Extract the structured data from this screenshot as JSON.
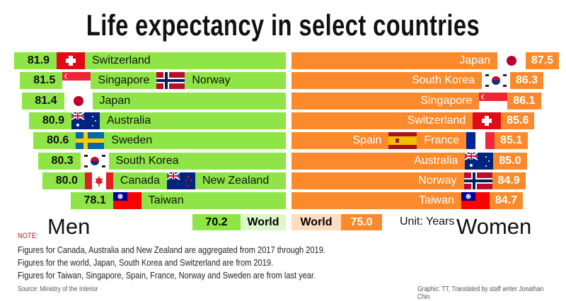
{
  "title": "Life expectancy in select countries",
  "chart_data": {
    "type": "bar",
    "title": "Life expectancy in select countries",
    "unit": "Unit: Years",
    "men": {
      "label": "Men",
      "color": "#8fe547",
      "rows": [
        {
          "value": "81.9",
          "countries": [
            "Switzerland"
          ]
        },
        {
          "value": "81.5",
          "countries": [
            "Singapore",
            "Norway"
          ]
        },
        {
          "value": "81.4",
          "countries": [
            "Japan"
          ]
        },
        {
          "value": "80.9",
          "countries": [
            "Australia"
          ]
        },
        {
          "value": "80.6",
          "countries": [
            "Sweden"
          ]
        },
        {
          "value": "80.3",
          "countries": [
            "South Korea"
          ]
        },
        {
          "value": "80.0",
          "countries": [
            "Canada",
            "New Zealand"
          ]
        },
        {
          "value": "78.1",
          "countries": [
            "Taiwan"
          ]
        }
      ],
      "world": {
        "label": "World",
        "value": "70.2"
      }
    },
    "women": {
      "label": "Women",
      "color": "#fb8a2c",
      "rows": [
        {
          "value": "87.5",
          "countries": [
            "Japan"
          ]
        },
        {
          "value": "86.3",
          "countries": [
            "South Korea"
          ]
        },
        {
          "value": "86.1",
          "countries": [
            "Singapore"
          ]
        },
        {
          "value": "85.6",
          "countries": [
            "Switzerland"
          ]
        },
        {
          "value": "85.1",
          "countries": [
            "Spain",
            "France"
          ]
        },
        {
          "value": "85.0",
          "countries": [
            "Australia"
          ]
        },
        {
          "value": "84.9",
          "countries": [
            "Norway"
          ]
        },
        {
          "value": "84.7",
          "countries": [
            "Taiwan"
          ]
        }
      ],
      "world": {
        "label": "World",
        "value": "75.0"
      }
    }
  },
  "note": {
    "heading": "NOTE:",
    "lines": [
      "Figures for Canada, Australia and New Zealand are aggregated from 2017 through 2019.",
      "Figures for the world, Japan, South Korea and Switzerland are from 2019.",
      "Figures for Taiwan, Singapore, Spain, France, Norway and Sweden are from last year."
    ]
  },
  "source": "Source: Ministry of the Interior",
  "credit": "Graphic: TT, Translated by staff writer Jonathan Chin"
}
